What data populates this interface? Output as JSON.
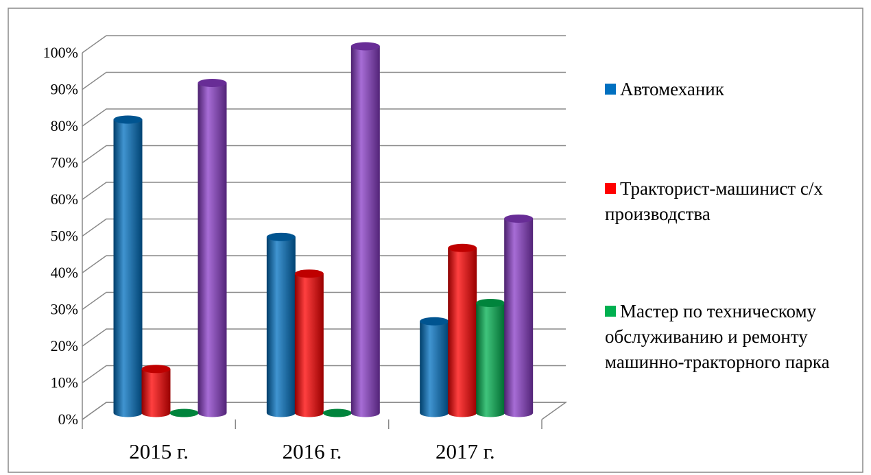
{
  "chart_data": {
    "type": "bar3d",
    "categories": [
      "2015 г.",
      "2016 г.",
      "2017 г."
    ],
    "series": [
      {
        "name": "Автомеханик",
        "color": "#0070c0",
        "values": [
          80,
          48,
          25
        ]
      },
      {
        "name": "Тракторист-машинист с/х производства",
        "color": "#ff0000",
        "values": [
          12,
          38,
          45
        ]
      },
      {
        "name": "Мастер по техническому обслуживанию и ремонту машинно-тракторного парка",
        "color": "#00b050",
        "values": [
          0,
          0,
          30
        ]
      },
      {
        "color": "#8a3cc8",
        "values": [
          90,
          100,
          53
        ]
      }
    ],
    "ylim": [
      0,
      100
    ],
    "yticks": [
      {
        "value": 0,
        "label": "0%"
      },
      {
        "value": 10,
        "label": "10%"
      },
      {
        "value": 20,
        "label": "20%"
      },
      {
        "value": 30,
        "label": "30%"
      },
      {
        "value": 40,
        "label": "40%"
      },
      {
        "value": 50,
        "label": "50%"
      },
      {
        "value": 60,
        "label": "60%"
      },
      {
        "value": 70,
        "label": "70%"
      },
      {
        "value": 80,
        "label": "80%"
      },
      {
        "value": 90,
        "label": "90%"
      },
      {
        "value": 100,
        "label": "100%"
      }
    ],
    "grid": true,
    "legend": "right"
  }
}
